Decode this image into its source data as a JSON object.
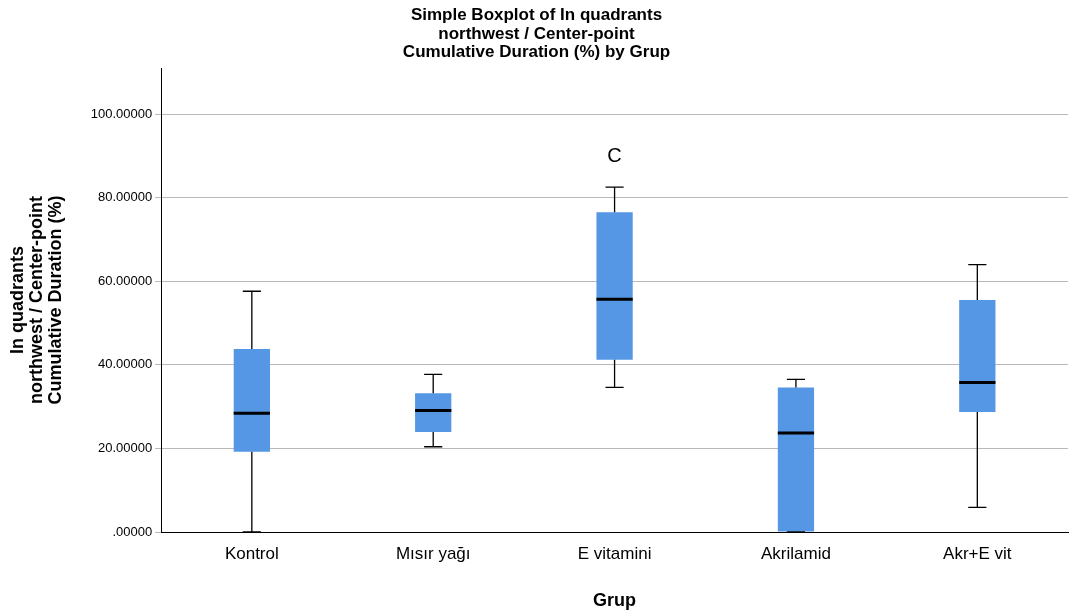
{
  "chart_data": {
    "type": "box",
    "title": "Simple Boxplot of In quadrants\nnorthwest / Center-point\nCumulative Duration (%) by Grup",
    "xlabel": "Grup",
    "ylabel": "In quadrants\nnorthwest / Center-point\nCumulative Duration (%)",
    "categories": [
      "Kontrol",
      "Mısır yağı",
      "E vitamini",
      "Akrilamid",
      "Akr+E vit"
    ],
    "color": "#5597e4",
    "boxes": [
      {
        "low": 0,
        "q1": 19.2,
        "median": 28.4,
        "q3": 43.8,
        "high": 57.6
      },
      {
        "low": 20.4,
        "q1": 23.9,
        "median": 29.1,
        "q3": 33.2,
        "high": 37.7
      },
      {
        "low": 34.6,
        "q1": 41.2,
        "median": 55.7,
        "q3": 76.5,
        "high": 82.5
      },
      {
        "low": 0,
        "q1": 0,
        "median": 23.7,
        "q3": 34.6,
        "high": 36.5
      },
      {
        "low": 5.9,
        "q1": 28.7,
        "median": 35.8,
        "q3": 55.5,
        "high": 64.0
      }
    ],
    "ylim": [
      0,
      111
    ],
    "yticks": [
      {
        "value": 0,
        "label": ".00000"
      },
      {
        "value": 20,
        "label": "20.00000"
      },
      {
        "value": 40,
        "label": "40.00000"
      },
      {
        "value": 60,
        "label": "60.00000"
      },
      {
        "value": 80,
        "label": "80.00000"
      },
      {
        "value": 100,
        "label": "100.00000"
      }
    ],
    "grid": "y",
    "legend": false,
    "annotations": [
      "C"
    ]
  }
}
